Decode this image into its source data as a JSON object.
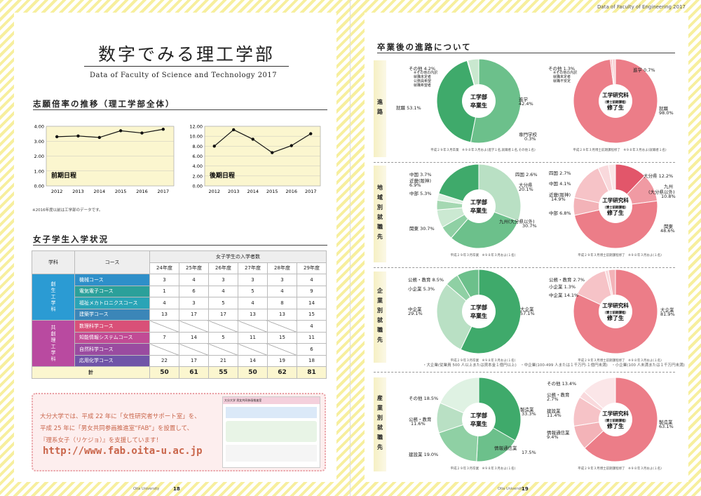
{
  "header": {
    "right_title": "Data of  Faculty of  Engineering 2017"
  },
  "left": {
    "title": "数字でみる理工学部",
    "subtitle": "Data of  Faculty of  Science and Technology 2017",
    "section1": "志願倍率の推移（理工学部全体）",
    "chart_data": [
      {
        "type": "line",
        "title": "前期日程",
        "categories": [
          "2012",
          "2013",
          "2014",
          "2015",
          "2016",
          "2017"
        ],
        "values": [
          3.3,
          3.35,
          3.25,
          3.7,
          3.55,
          3.8
        ],
        "ylim": [
          0,
          4
        ],
        "yticks": [
          "0.00",
          "1.00",
          "2.00",
          "3.00",
          "4.00"
        ]
      },
      {
        "type": "line",
        "title": "後期日程",
        "categories": [
          "2012",
          "2013",
          "2014",
          "2015",
          "2016",
          "2017"
        ],
        "values": [
          8.0,
          11.3,
          9.4,
          6.7,
          8.1,
          10.5
        ],
        "ylim": [
          0,
          12
        ],
        "yticks": [
          "0.00",
          "2.00",
          "4.00",
          "6.00",
          "8.00",
          "10.00",
          "12.00"
        ]
      }
    ],
    "note": "※2016年度以前は工学部のデータです。",
    "section2": "女子学生入学状況",
    "table": {
      "h_dept": "学科",
      "h_course": "コース",
      "h_group": "女子学生の入学者数",
      "years": [
        "24年度",
        "25年度",
        "26年度",
        "27年度",
        "28年度",
        "29年度"
      ],
      "dept1": "創生工学科",
      "dept2": "共創理工学科",
      "rows": [
        {
          "name": "機械コース",
          "color": "#2e8fc9",
          "v": [
            "3",
            "4",
            "3",
            "3",
            "3",
            "4"
          ]
        },
        {
          "name": "電気電子コース",
          "color": "#2ba09a",
          "v": [
            "1",
            "6",
            "4",
            "5",
            "4",
            "9"
          ]
        },
        {
          "name": "福祉メカトロニクスコース",
          "color": "#2aa4b6",
          "v": [
            "4",
            "3",
            "5",
            "4",
            "8",
            "14"
          ]
        },
        {
          "name": "建築学コース",
          "color": "#3b86b8",
          "v": [
            "13",
            "17",
            "17",
            "13",
            "13",
            "15"
          ]
        },
        {
          "name": "数理科学コース",
          "color": "#d95078",
          "v": [
            "",
            "",
            "",
            "",
            "",
            "4"
          ]
        },
        {
          "name": "知能情報システムコース",
          "color": "#c14b95",
          "v": [
            "7",
            "14",
            "5",
            "11",
            "15",
            "11"
          ]
        },
        {
          "name": "自然科学コース",
          "color": "#9a4ba0",
          "v": [
            "",
            "",
            "",
            "",
            "",
            "6"
          ]
        },
        {
          "name": "応用化学コース",
          "color": "#7054a8",
          "v": [
            "22",
            "17",
            "21",
            "14",
            "19",
            "18"
          ]
        }
      ],
      "total_label": "計",
      "totals": [
        "50",
        "61",
        "55",
        "50",
        "62",
        "81"
      ]
    },
    "promo": {
      "l1": "大分大学では、平成 22 年に「女性研究者サポート室」を、",
      "l2": "平成 25 年に「男女共同参画推進室“FAB”」を設置して、",
      "l3": "『理系女子（リケジョ）』を支援しています！",
      "url": "http://www.fab.oita-u.ac.jp",
      "screen_title": "大分大学 男女共同参画推進室"
    },
    "footer": "Oita University",
    "page": "18"
  },
  "right": {
    "section": "卒業後の進路について",
    "side": [
      "進路",
      "地域別就職先",
      "企業別就職先",
      "産業別就職先"
    ],
    "center_a": [
      "工学部",
      "卒業生"
    ],
    "center_b": [
      "工学研究科",
      "（博士前期課程）",
      "修了生"
    ],
    "pies": [
      {
        "slices": [
          {
            "label": "就職",
            "value": 53.1,
            "color": "#6cc08b"
          },
          {
            "label": "進学",
            "value": 42.4,
            "color": "#3faa6b"
          },
          {
            "label": "専門学校",
            "value": 0.3,
            "color": "#a9dcb5"
          },
          {
            "label": "その他",
            "value": 4.2,
            "color": "#c9e8cf"
          }
        ],
        "labels": {
          "a": "その他 4.2%",
          "a2": "※その他の内訳",
          "a3": "就職未定者",
          "a4": "公務員希望",
          "a5": "就職希望者",
          "b": "就職 53.1%",
          "c": "進学",
          "c2": "42.4%",
          "d": "専門学校",
          "d2": "0.3%"
        },
        "foot": "平成２９年３月卒業　※９８年３月およ(進学１名,就職者１名,その他１名)"
      },
      {
        "slices": [
          {
            "label": "就職",
            "value": 98.0,
            "color": "#ec7d88"
          },
          {
            "label": "進学",
            "value": 0.7,
            "color": "#f3b3b8"
          },
          {
            "label": "その他",
            "value": 1.3,
            "color": "#f8d3d6"
          }
        ],
        "labels": {
          "a": "その他 1.3%",
          "a2": "※その他の内訳",
          "a3": "就職未定者",
          "a4": "就職不安定",
          "c": "進学 0.7%",
          "d": "就職",
          "d2": "98.0%"
        },
        "foot": "平成２９年３月博士前期課程修了　※９８年３月およ(就職者１名)"
      },
      {
        "slices": [
          {
            "label": "九州",
            "value": 30.7,
            "color": "#b9e0c4"
          },
          {
            "label": "関東",
            "value": 30.7,
            "color": "#6cc08b"
          },
          {
            "label": "中部",
            "value": 5.3,
            "color": "#8fd0a4"
          },
          {
            "label": "近畿",
            "value": 6.9,
            "color": "#cbe9d2"
          },
          {
            "label": "中国",
            "value": 3.7,
            "color": "#a5d8b2"
          },
          {
            "label": "四国",
            "value": 2.6,
            "color": "#dff2e3"
          },
          {
            "label": "大分県",
            "value": 20.1,
            "color": "#3faa6b"
          }
        ],
        "labels": {
          "a": "中国 3.7%",
          "b": "近畿(阪神)",
          "b2": "6.9%",
          "c": "中部 5.3%",
          "d": "関東 30.7%",
          "e": "四国 2.6%",
          "f": "大分県",
          "f2": "20.1%",
          "g": "九州(大分県以外)",
          "g2": "30.7%"
        },
        "foot": "平成２９年３月卒業　※９８年３月およ(１名)"
      },
      {
        "slices": [
          {
            "label": "大分県",
            "value": 12.2,
            "color": "#e2566a"
          },
          {
            "label": "九州",
            "value": 10.8,
            "color": "#f09aa3"
          },
          {
            "label": "関東",
            "value": 48.6,
            "color": "#ec7d88"
          },
          {
            "label": "中部",
            "value": 6.8,
            "color": "#f3b3b8"
          },
          {
            "label": "近畿",
            "value": 14.9,
            "color": "#f6c3c7"
          },
          {
            "label": "中国",
            "value": 4.1,
            "color": "#f9d9dc"
          },
          {
            "label": "四国",
            "value": 2.7,
            "color": "#fbe6e8"
          }
        ],
        "labels": {
          "a": "四国 2.7%",
          "b": "中国 4.1%",
          "c": "近畿(阪神)",
          "c2": "14.9%",
          "d": "中部 6.8%",
          "e": "大分県 12.2%",
          "f": "九州",
          "f2": "(大分県以外)",
          "f3": "10.8%",
          "g": "関東",
          "g2": "48.6%"
        },
        "foot": "平成２９年３月博士前期課程修了　※９８年３月およ(１名)"
      },
      {
        "slices": [
          {
            "label": "大企業",
            "value": 57.1,
            "color": "#3faa6b"
          },
          {
            "label": "中企業",
            "value": 29.1,
            "color": "#b9e0c4"
          },
          {
            "label": "小企業",
            "value": 5.3,
            "color": "#8fd0a4"
          },
          {
            "label": "公務・教育",
            "value": 8.5,
            "color": "#6cc08b"
          }
        ],
        "labels": {
          "a": "公務・教育 8.5%",
          "b": "小企業 5.3%",
          "c": "中企業",
          "c2": "29.1%",
          "d": "大企業",
          "d2": "57.1%"
        },
        "foot": "平成２９年３月卒業　※９８年３月およ(１名)"
      },
      {
        "slices": [
          {
            "label": "大企業",
            "value": 81.9,
            "color": "#ec7d88"
          },
          {
            "label": "中企業",
            "value": 14.1,
            "color": "#f6c3c7"
          },
          {
            "label": "小企業",
            "value": 1.3,
            "color": "#f9d9dc"
          },
          {
            "label": "公務・教育",
            "value": 2.7,
            "color": "#f3b3b8"
          }
        ],
        "labels": {
          "a": "公務・教育 2.7%",
          "b": "小企業 1.3%",
          "c": "中企業 14.1%",
          "d": "大企業",
          "d2": "81.9%"
        },
        "foot": "平成２９年３月博士前期課程修了　※９８年３月およ(１名)"
      },
      {
        "slices": [
          {
            "label": "製造業",
            "value": 33.3,
            "color": "#3faa6b"
          },
          {
            "label": "情報通信業",
            "value": 17.5,
            "color": "#6cc08b"
          },
          {
            "label": "建設業",
            "value": 19.0,
            "color": "#8fd0a4"
          },
          {
            "label": "公務・教育",
            "value": 11.6,
            "color": "#b9e0c4"
          },
          {
            "label": "その他",
            "value": 18.5,
            "color": "#dff2e3"
          }
        ],
        "labels": {
          "a": "その他 18.5%",
          "b": "公務・教育",
          "b2": "11.6%",
          "c": "建設業 19.0%",
          "d": "製造業",
          "d2": "33.3%",
          "e": "情報通信業",
          "e2": "17.5%"
        },
        "foot": "平成２９年３月卒業　※９８年３月およ(１名)"
      },
      {
        "slices": [
          {
            "label": "製造業",
            "value": 63.1,
            "color": "#ec7d88"
          },
          {
            "label": "情報通信業",
            "value": 9.4,
            "color": "#f3b3b8"
          },
          {
            "label": "建設業",
            "value": 11.4,
            "color": "#f6c3c7"
          },
          {
            "label": "公務・教育",
            "value": 2.7,
            "color": "#f9d9dc"
          },
          {
            "label": "その他",
            "value": 13.4,
            "color": "#fbe6e8"
          }
        ],
        "labels": {
          "a": "その他 13.4%",
          "b": "公務・教育",
          "b2": "2.7%",
          "c": "建設業",
          "c2": "11.4%",
          "d": "情報通信業",
          "d2": "9.4%",
          "e": "製造業",
          "e2": "63.1%"
        },
        "foot": "平成２９年３月博士前期課程修了　※９８年３月およ(１名)"
      }
    ],
    "size_note": "・大企業(従業員 500 人以上または資本金１億円以上)　・中企業(100-499 人または１千万円-１億円未満)　・小企業(100 人未満または１千万円未満)",
    "footer": "Oita University",
    "page": "19"
  }
}
